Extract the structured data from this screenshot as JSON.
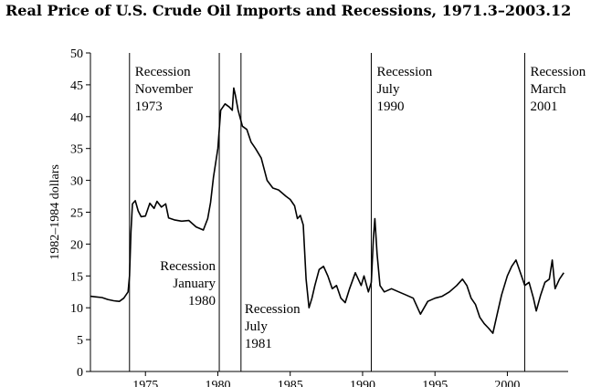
{
  "chart_data": {
    "type": "line",
    "title": "Real Price of U.S. Crude Oil Imports and Recessions, 1971.3–2003.12",
    "xlabel": "",
    "ylabel": "1982–1984 dollars",
    "xlim": [
      1971.2,
      2004.2
    ],
    "ylim": [
      0,
      50
    ],
    "yticks": [
      0,
      5,
      10,
      15,
      20,
      25,
      30,
      35,
      40,
      45,
      50
    ],
    "xticks": [
      1975,
      1980,
      1985,
      1990,
      1995,
      2000
    ],
    "grid": false,
    "series": [
      {
        "name": "",
        "x": [
          1971.2,
          1971.6,
          1972.0,
          1972.4,
          1972.8,
          1973.2,
          1973.5,
          1973.8,
          1973.9,
          1974.0,
          1974.1,
          1974.3,
          1974.5,
          1974.7,
          1975.0,
          1975.3,
          1975.6,
          1975.8,
          1976.1,
          1976.4,
          1976.6,
          1977.0,
          1977.5,
          1978.0,
          1978.5,
          1979.0,
          1979.3,
          1979.5,
          1979.7,
          1980.0,
          1980.2,
          1980.5,
          1980.8,
          1981.0,
          1981.1,
          1981.2,
          1981.4,
          1981.7,
          1982.0,
          1982.3,
          1982.6,
          1983.0,
          1983.4,
          1983.8,
          1984.2,
          1984.7,
          1985.0,
          1985.3,
          1985.5,
          1985.7,
          1985.9,
          1986.1,
          1986.3,
          1986.5,
          1986.7,
          1987.0,
          1987.3,
          1987.6,
          1987.9,
          1988.2,
          1988.5,
          1988.8,
          1989.1,
          1989.5,
          1989.9,
          1990.1,
          1990.4,
          1990.6,
          1990.75,
          1990.85,
          1991.0,
          1991.2,
          1991.5,
          1992.0,
          1992.5,
          1993.0,
          1993.5,
          1994.0,
          1994.5,
          1995.0,
          1995.5,
          1996.0,
          1996.5,
          1996.9,
          1997.2,
          1997.5,
          1997.8,
          1998.1,
          1998.4,
          1998.7,
          1999.0,
          1999.3,
          1999.6,
          2000.0,
          2000.3,
          2000.6,
          2000.9,
          2001.2,
          2001.5,
          2001.8,
          2002.0,
          2002.3,
          2002.6,
          2002.9,
          2003.1,
          2003.3,
          2003.6,
          2003.9
        ],
        "y": [
          11.8,
          11.7,
          11.6,
          11.3,
          11.1,
          11.0,
          11.5,
          12.5,
          15.0,
          22.0,
          26.3,
          26.8,
          25.2,
          24.3,
          24.4,
          26.4,
          25.6,
          26.7,
          25.8,
          26.3,
          24.1,
          23.8,
          23.6,
          23.7,
          22.7,
          22.2,
          24.0,
          26.5,
          30.5,
          35.0,
          41.0,
          42.0,
          41.5,
          41.0,
          44.5,
          43.5,
          41.0,
          38.5,
          38.0,
          36.0,
          35.0,
          33.5,
          30.0,
          28.8,
          28.5,
          27.5,
          27.0,
          26.0,
          24.0,
          24.5,
          23.0,
          14.5,
          10.0,
          11.5,
          13.5,
          16.0,
          16.5,
          15.0,
          13.0,
          13.5,
          11.5,
          10.8,
          13.0,
          15.5,
          13.5,
          15.0,
          12.5,
          14.0,
          21.0,
          24.0,
          18.5,
          13.5,
          12.5,
          13.0,
          12.5,
          12.0,
          11.5,
          9.0,
          11.0,
          11.5,
          11.8,
          12.5,
          13.5,
          14.5,
          13.5,
          11.5,
          10.5,
          8.5,
          7.5,
          6.8,
          6.0,
          9.0,
          12.0,
          15.0,
          16.5,
          17.5,
          15.5,
          13.5,
          14.0,
          11.5,
          9.5,
          12.0,
          14.0,
          14.5,
          17.5,
          13.0,
          14.5,
          15.5
        ]
      }
    ],
    "recessions": [
      {
        "x": 1973.9,
        "lines": [
          "Recession",
          "November",
          "1973"
        ],
        "position": "right-top"
      },
      {
        "x": 1980.1,
        "lines": [
          "Recession",
          "January",
          "1980"
        ],
        "position": "left-middle"
      },
      {
        "x": 1981.6,
        "lines": [
          "Recession",
          "July",
          "1981"
        ],
        "position": "right-bottom"
      },
      {
        "x": 1990.6,
        "lines": [
          "Recession",
          "July",
          "1990"
        ],
        "position": "right-top"
      },
      {
        "x": 2001.2,
        "lines": [
          "Recession",
          "March",
          "2001"
        ],
        "position": "right-top"
      }
    ]
  }
}
